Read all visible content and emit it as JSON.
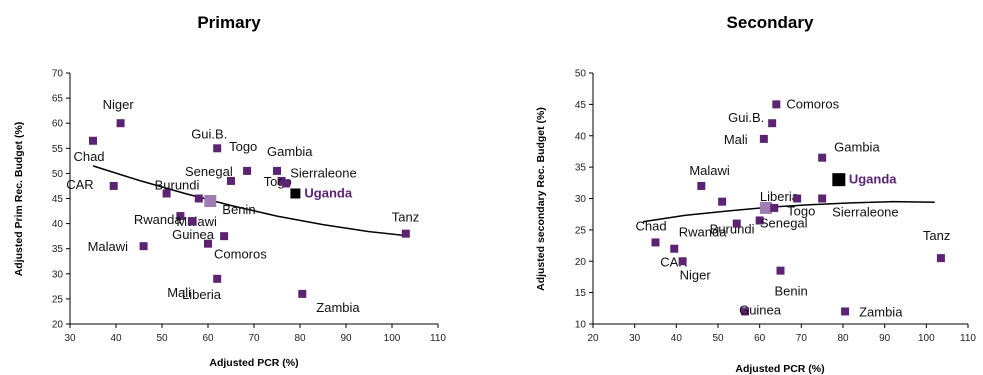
{
  "colors": {
    "marker": "#5b2473",
    "highlight_marker": "#000000",
    "light_marker": "#a07cb4",
    "trend": "#000000",
    "uganda_label": "#5b2473"
  },
  "chart_data": [
    {
      "type": "scatter",
      "title": "Primary",
      "xlabel": "Adjusted PCR (%)",
      "ylabel": "Adjusted Prim Rec.  Budget (%)",
      "xlim": [
        30,
        110
      ],
      "ylim": [
        20,
        70
      ],
      "xticks": [
        30,
        40,
        50,
        60,
        70,
        80,
        90,
        100,
        110
      ],
      "yticks": [
        20,
        25,
        30,
        35,
        40,
        45,
        50,
        55,
        60,
        65,
        70
      ],
      "grid": false,
      "trendline": {
        "type": "polynomial",
        "points": [
          [
            35,
            51.5
          ],
          [
            45,
            48.6
          ],
          [
            55,
            46.0
          ],
          [
            65,
            43.6
          ],
          [
            75,
            41.5
          ],
          [
            85,
            39.8
          ],
          [
            95,
            38.4
          ],
          [
            103,
            37.6
          ]
        ]
      },
      "points": [
        {
          "label": "Niger",
          "x": 41,
          "y": 60,
          "style": "normal"
        },
        {
          "label": "Chad",
          "x": 35,
          "y": 56.5,
          "style": "normal"
        },
        {
          "label": "CAR",
          "x": 39.5,
          "y": 47.5,
          "style": "normal"
        },
        {
          "label": "Burundi",
          "x": 51,
          "y": 46,
          "style": "normal"
        },
        {
          "label": "",
          "x": 58,
          "y": 45,
          "style": "normal"
        },
        {
          "label": "Gui.B.",
          "x": 62,
          "y": 55,
          "style": "normal"
        },
        {
          "label": "Togo",
          "x": 68.5,
          "y": 50.5,
          "style": "normal"
        },
        {
          "label": "Senegal",
          "x": 65,
          "y": 48.5,
          "style": "normal"
        },
        {
          "label": "Benin",
          "x": 60.5,
          "y": 44.5,
          "style": "light"
        },
        {
          "label": "Gambia",
          "x": 75,
          "y": 50.5,
          "style": "normal"
        },
        {
          "label": "Togo",
          "x": 76,
          "y": 48.5,
          "style": "normal"
        },
        {
          "label": "Sierraleone",
          "x": 77,
          "y": 48,
          "style": "normal"
        },
        {
          "label": "Uganda",
          "x": 79,
          "y": 46,
          "style": "highlight"
        },
        {
          "label": "Malawi",
          "x": 54,
          "y": 41.5,
          "style": "normal"
        },
        {
          "label": "Rwanda",
          "x": 56.5,
          "y": 40.5,
          "style": "normal"
        },
        {
          "label": "Guinea",
          "x": 63.5,
          "y": 37.5,
          "style": "normal"
        },
        {
          "label": "Comoros",
          "x": 60,
          "y": 36,
          "style": "normal"
        },
        {
          "label": "Malawi",
          "x": 46,
          "y": 35.5,
          "style": "normal"
        },
        {
          "label": "Mali",
          "x": 62,
          "y": 29,
          "style": "normal"
        },
        {
          "label": "Liberia",
          "x": 60,
          "y": 25,
          "style": "none"
        },
        {
          "label": "Zambia",
          "x": 80.5,
          "y": 26,
          "style": "normal"
        },
        {
          "label": "Tanz",
          "x": 103,
          "y": 38,
          "style": "normal"
        }
      ]
    },
    {
      "type": "scatter",
      "title": "Secondary",
      "xlabel": "Adjusted PCR (%)",
      "ylabel": "Adjusted secondary Rec.  Budget (%)",
      "xlim": [
        20,
        110
      ],
      "ylim": [
        10,
        50
      ],
      "xticks": [
        20,
        30,
        40,
        50,
        60,
        70,
        80,
        90,
        100,
        110
      ],
      "yticks": [
        10,
        15,
        20,
        25,
        30,
        35,
        40,
        45,
        50
      ],
      "grid": false,
      "trendline": {
        "type": "polynomial",
        "points": [
          [
            32,
            26.3
          ],
          [
            42,
            27.3
          ],
          [
            52,
            28.0
          ],
          [
            62,
            28.6
          ],
          [
            72,
            29.0
          ],
          [
            82,
            29.3
          ],
          [
            92,
            29.5
          ],
          [
            102,
            29.4
          ]
        ]
      },
      "points": [
        {
          "label": "Comoros",
          "x": 64,
          "y": 45,
          "style": "normal"
        },
        {
          "label": "Gui.B.",
          "x": 63,
          "y": 42,
          "style": "normal"
        },
        {
          "label": "Mali",
          "x": 61,
          "y": 39.5,
          "style": "normal"
        },
        {
          "label": "Gambia",
          "x": 75,
          "y": 36.5,
          "style": "normal"
        },
        {
          "label": "Uganda",
          "x": 79,
          "y": 33,
          "style": "highlight"
        },
        {
          "label": "Malawi",
          "x": 46,
          "y": 32,
          "style": "normal"
        },
        {
          "label": "",
          "x": 51,
          "y": 29.5,
          "style": "normal"
        },
        {
          "label": "Liberia",
          "x": 61.5,
          "y": 28.5,
          "style": "light"
        },
        {
          "label": "",
          "x": 63.5,
          "y": 28.5,
          "style": "normal"
        },
        {
          "label": "Togo",
          "x": 69,
          "y": 30,
          "style": "normal"
        },
        {
          "label": "Sierraleone",
          "x": 75,
          "y": 30,
          "style": "normal"
        },
        {
          "label": "Burundi",
          "x": 60,
          "y": 26.5,
          "style": "normal"
        },
        {
          "label": "Rwanda",
          "x": 54.5,
          "y": 26,
          "style": "normal"
        },
        {
          "label": "Senegal",
          "x": 61,
          "y": 26.5,
          "style": "none"
        },
        {
          "label": "Chad",
          "x": 35,
          "y": 23,
          "style": "normal"
        },
        {
          "label": "CAR",
          "x": 39.5,
          "y": 22,
          "style": "normal"
        },
        {
          "label": "Niger",
          "x": 41.5,
          "y": 20,
          "style": "normal"
        },
        {
          "label": "Benin",
          "x": 65,
          "y": 18.5,
          "style": "normal"
        },
        {
          "label": "Guinea",
          "x": 56.5,
          "y": 12,
          "style": "normal"
        },
        {
          "label": "Zambia",
          "x": 80.5,
          "y": 12,
          "style": "normal"
        },
        {
          "label": "Tanz",
          "x": 103.5,
          "y": 20.5,
          "style": "normal"
        }
      ]
    }
  ]
}
